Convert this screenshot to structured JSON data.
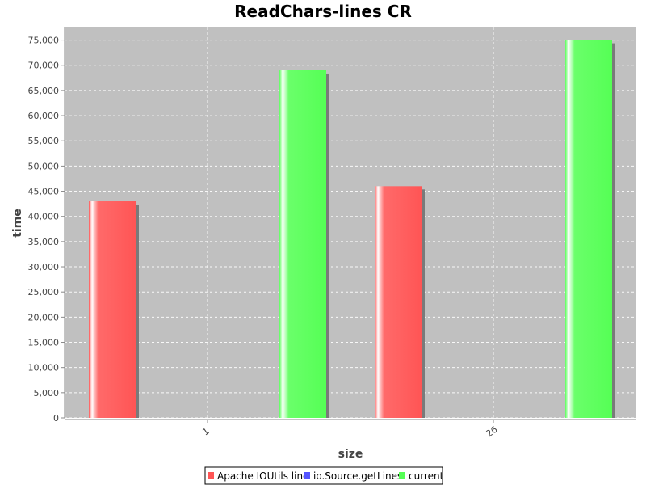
{
  "chart_data": {
    "type": "bar",
    "title": "ReadChars-lines CR",
    "xlabel": "size",
    "ylabel": "time",
    "categories": [
      "1",
      "26"
    ],
    "series": [
      {
        "name": "Apache IOUtils line",
        "values": [
          43000,
          46000
        ],
        "color": "#ff5555"
      },
      {
        "name": "io.Source.getLines",
        "values": [
          null,
          null
        ],
        "color": "#5555ff"
      },
      {
        "name": "current",
        "values": [
          69000,
          75000
        ],
        "color": "#55ff55"
      }
    ],
    "ylim": [
      0,
      77500
    ],
    "yticks": [
      "0",
      "5,000",
      "10,000",
      "15,000",
      "20,000",
      "25,000",
      "30,000",
      "35,000",
      "40,000",
      "45,000",
      "50,000",
      "55,000",
      "60,000",
      "65,000",
      "70,000",
      "75,000"
    ],
    "grid": true,
    "legend_position": "bottom",
    "plot_background": "#c0c0c0"
  }
}
